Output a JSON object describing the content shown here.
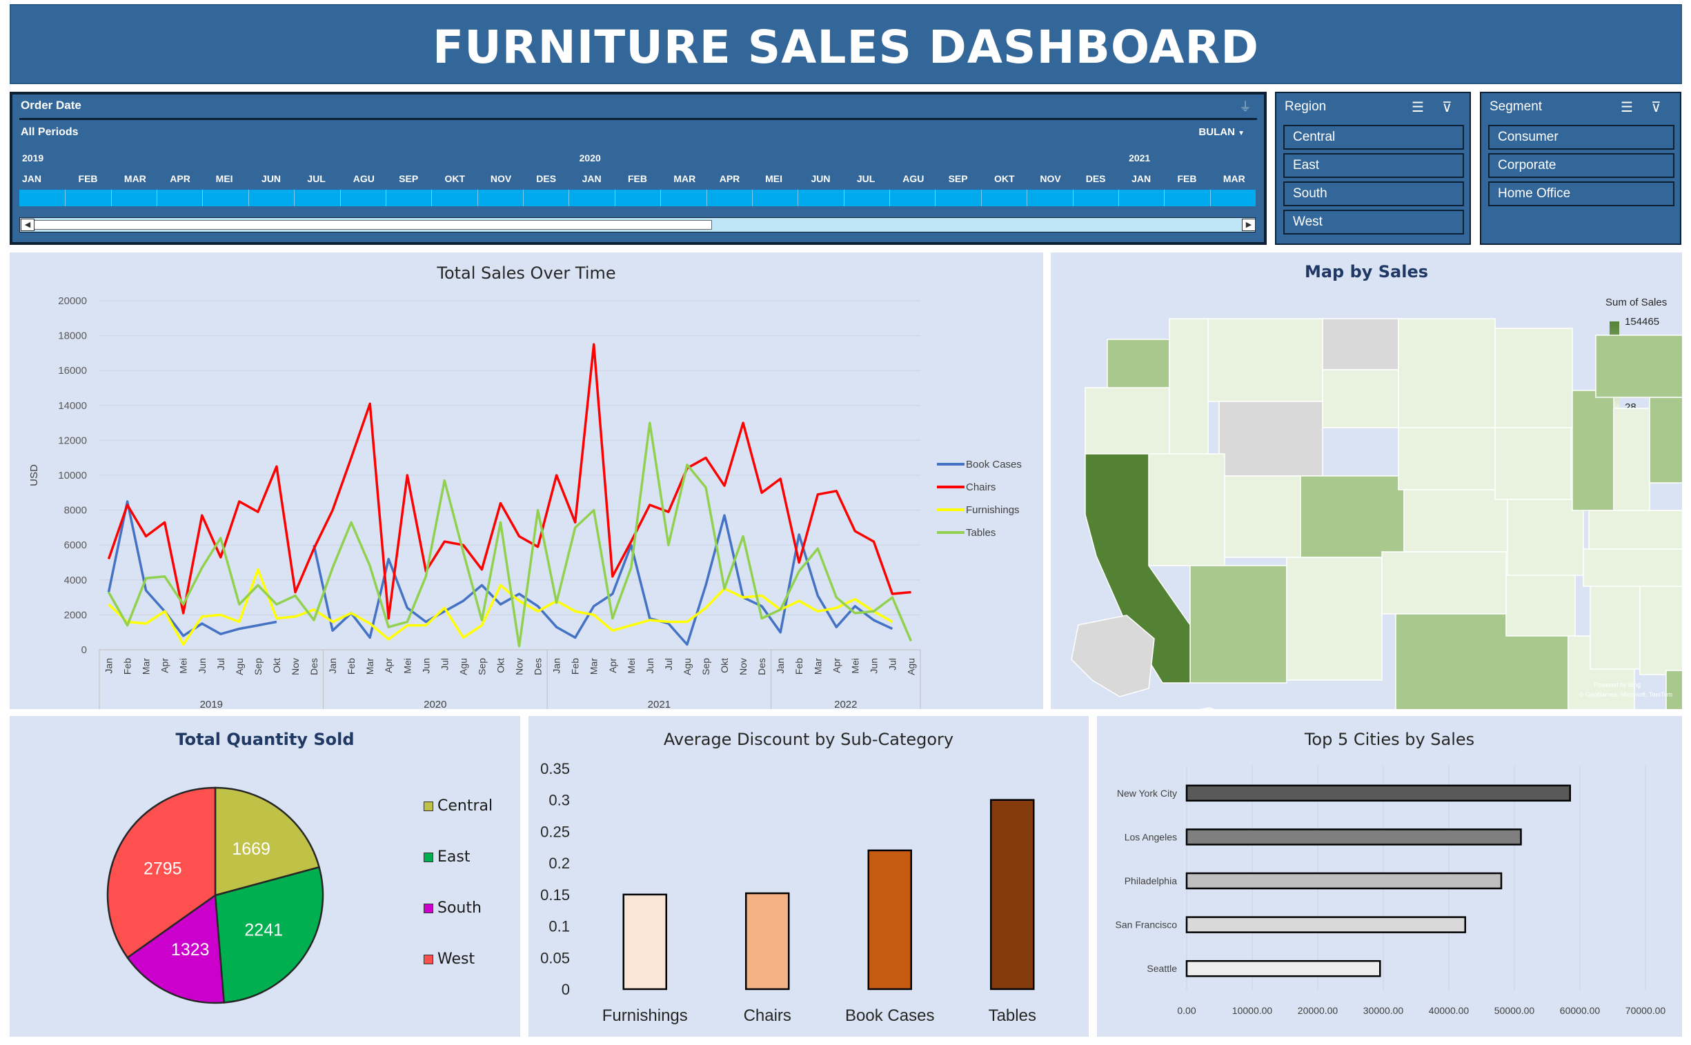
{
  "header": {
    "title": "FURNITURE SALES DASHBOARD"
  },
  "timeline": {
    "title": "Order Date",
    "period_label": "All Periods",
    "level": "BULAN",
    "years": [
      "2019",
      "2020",
      "2021"
    ],
    "months": [
      "JAN",
      "FEB",
      "MAR",
      "APR",
      "MEI",
      "JUN",
      "JUL",
      "AGU",
      "SEP",
      "OKT",
      "NOV",
      "DES",
      "JAN",
      "FEB",
      "MAR",
      "APR",
      "MEI",
      "JUN",
      "JUL",
      "AGU",
      "SEP",
      "OKT",
      "NOV",
      "DES",
      "JAN",
      "FEB",
      "MAR"
    ]
  },
  "region_slicer": {
    "title": "Region",
    "items": [
      "Central",
      "East",
      "South",
      "West"
    ]
  },
  "segment_slicer": {
    "title": "Segment",
    "items": [
      "Consumer",
      "Corporate",
      "Home Office"
    ]
  },
  "line_chart_panel": {
    "title": "Total Sales Over Time"
  },
  "map_panel": {
    "title": "Map by Sales",
    "legend_title": "Sum of Sales",
    "legend_max": "154465",
    "legend_min": "28",
    "credit_1": "Powered by Bing",
    "credit_2": "© GeoNames, Microsoft, TomTom",
    "colors": {
      "high": "#548235",
      "mid": "#a9c88d",
      "low": "#e8f2de",
      "none": "#d9d9d9"
    }
  },
  "pie_panel": {
    "title": "Total Quantity Sold"
  },
  "discount_panel": {
    "title": "Average Discount by Sub-Category"
  },
  "cities_panel": {
    "title": "Top 5 Cities by Sales"
  },
  "chart_data": [
    {
      "type": "line",
      "title": "Total Sales Over Time",
      "ylabel": "USD",
      "ylim": [
        0,
        20000
      ],
      "yticks": [
        0,
        2000,
        4000,
        6000,
        8000,
        10000,
        12000,
        14000,
        16000,
        18000,
        20000
      ],
      "x": [
        "Jan",
        "Feb",
        "Mar",
        "Apr",
        "Mei",
        "Jun",
        "Jul",
        "Agu",
        "Sep",
        "Okt",
        "Nov",
        "Des",
        "Jan",
        "Feb",
        "Mar",
        "Apr",
        "Mei",
        "Jun",
        "Jul",
        "Agu",
        "Sep",
        "Okt",
        "Nov",
        "Des",
        "Jan",
        "Feb",
        "Mar",
        "Apr",
        "Mei",
        "Jun",
        "Jul",
        "Agu",
        "Sep",
        "Okt",
        "Nov",
        "Des",
        "Jan",
        "Feb",
        "Mar",
        "Apr",
        "Mei",
        "Jun",
        "Jul",
        "Agu"
      ],
      "year_groups": [
        {
          "label": "2019",
          "start": 0,
          "count": 12
        },
        {
          "label": "2020",
          "start": 12,
          "count": 12
        },
        {
          "label": "2021",
          "start": 24,
          "count": 12
        },
        {
          "label": "2022",
          "start": 36,
          "count": 8
        }
      ],
      "legend_position": "right",
      "series": [
        {
          "name": "Book Cases",
          "color": "#4472c4",
          "values": [
            3300,
            8500,
            3400,
            2200,
            800,
            1500,
            900,
            1200,
            1400,
            1600,
            null,
            6000,
            1100,
            2100,
            700,
            5200,
            2400,
            1600,
            2200,
            2800,
            3700,
            2600,
            3200,
            2500,
            1300,
            700,
            2500,
            3200,
            6000,
            1800,
            1500,
            300,
            3700,
            7700,
            3000,
            2500,
            1000,
            6600,
            3100,
            1300,
            2500,
            1700,
            1200,
            null
          ]
        },
        {
          "name": "Chairs",
          "color": "#ff0000",
          "values": [
            5200,
            8300,
            6500,
            7300,
            2100,
            7700,
            5300,
            8500,
            7900,
            10500,
            3300,
            5800,
            8000,
            11000,
            14100,
            1800,
            10000,
            4500,
            6200,
            6000,
            4600,
            8400,
            6500,
            5900,
            10000,
            7300,
            17500,
            4200,
            6200,
            8300,
            7900,
            10400,
            11000,
            9400,
            13000,
            9000,
            9800,
            5000,
            8900,
            9100,
            6800,
            6200,
            3200,
            3300
          ]
        },
        {
          "name": "Furnishings",
          "color": "#ffff00",
          "values": [
            2600,
            1600,
            1500,
            2200,
            300,
            1900,
            2000,
            1600,
            4600,
            1800,
            1900,
            2300,
            1600,
            2100,
            1500,
            600,
            1400,
            1400,
            2400,
            700,
            1400,
            3700,
            2800,
            2200,
            2800,
            2200,
            2000,
            1100,
            1400,
            1700,
            1600,
            1600,
            2400,
            3500,
            3000,
            3100,
            2300,
            2800,
            2200,
            2400,
            2900,
            2200,
            1600,
            null
          ]
        },
        {
          "name": "Tables",
          "color": "#92d050",
          "values": [
            3300,
            1400,
            4100,
            4200,
            2600,
            4700,
            6400,
            2600,
            3700,
            2600,
            3100,
            1700,
            4700,
            7300,
            4800,
            1300,
            1600,
            4200,
            9700,
            5600,
            1700,
            7300,
            200,
            8000,
            2700,
            7000,
            8000,
            1800,
            4700,
            13000,
            6000,
            10600,
            9300,
            3500,
            6500,
            1800,
            2300,
            4500,
            5800,
            3000,
            2100,
            2200,
            3000,
            500
          ]
        }
      ]
    },
    {
      "type": "pie",
      "title": "Total Quantity Sold",
      "labels": [
        "Central",
        "East",
        "South",
        "West"
      ],
      "values": [
        1669,
        2241,
        1323,
        2795
      ],
      "colors": [
        "#bfc246",
        "#00b050",
        "#cc00cc",
        "#ff5050"
      ],
      "legend_position": "right"
    },
    {
      "type": "bar",
      "title": "Average Discount by Sub-Category",
      "categories": [
        "Furnishings",
        "Chairs",
        "Book Cases",
        "Tables"
      ],
      "values": [
        0.15,
        0.152,
        0.22,
        0.3
      ],
      "colors": [
        "#fbe5d6",
        "#f4b183",
        "#c55a11",
        "#843c0c"
      ],
      "ylim": [
        0,
        0.35
      ],
      "yticks": [
        "0",
        "0.05",
        "0.1",
        "0.15",
        "0.2",
        "0.25",
        "0.3",
        "0.35"
      ]
    },
    {
      "type": "bar",
      "orientation": "horizontal",
      "title": "Top 5 Cities by Sales",
      "categories": [
        "New York City",
        "Los Angeles",
        "Philadelphia",
        "San Francisco",
        "Seattle"
      ],
      "values": [
        58500,
        51000,
        48000,
        42500,
        29500
      ],
      "colors": [
        "#595959",
        "#7f7f7f",
        "#bfbfbf",
        "#d9d9d9",
        "#ededed"
      ],
      "xlim": [
        0,
        70000
      ],
      "xticks": [
        "0.00",
        "10000.00",
        "20000.00",
        "30000.00",
        "40000.00",
        "50000.00",
        "60000.00",
        "70000.00"
      ]
    }
  ]
}
